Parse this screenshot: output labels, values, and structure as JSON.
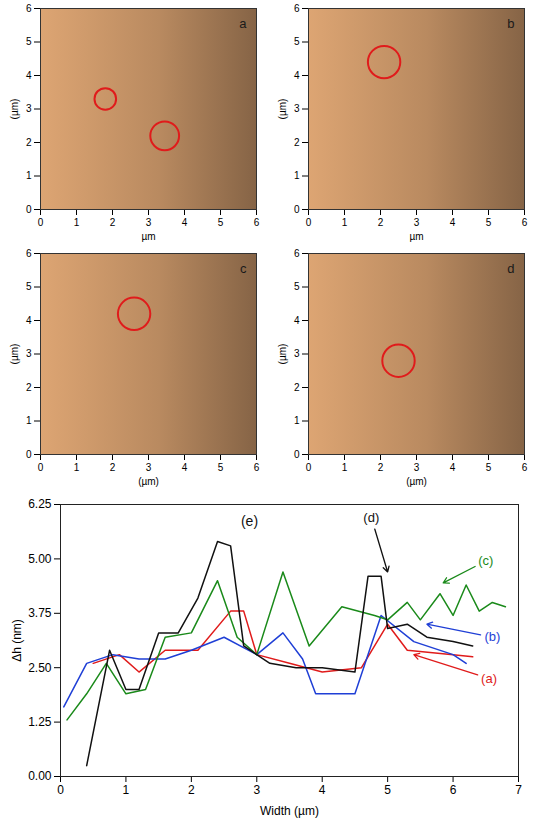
{
  "chart_data": [
    {
      "type": "image",
      "label": "a",
      "color": "#b98a60",
      "xlim": [
        0,
        6
      ],
      "ylim": [
        0,
        6
      ],
      "xticks": [
        0,
        1,
        2,
        3,
        4,
        5,
        6
      ],
      "yticks": [
        0,
        1,
        2,
        3,
        4,
        5,
        6
      ],
      "xlabel": "µm",
      "ylabel": "(µm)",
      "circle_color": "#e01b1b",
      "circles": [
        {
          "x": 1.8,
          "y": 3.3,
          "r": 0.3
        },
        {
          "x": 3.45,
          "y": 2.2,
          "r": 0.4
        }
      ]
    },
    {
      "type": "image",
      "label": "b",
      "color": "#b98a60",
      "xlim": [
        0,
        6
      ],
      "ylim": [
        0,
        6
      ],
      "xticks": [
        0,
        1,
        2,
        3,
        4,
        5,
        6
      ],
      "yticks": [
        0,
        1,
        2,
        3,
        4,
        5,
        6
      ],
      "xlabel": "µm",
      "ylabel": "(µm)",
      "circle_color": "#e01b1b",
      "circles": [
        {
          "x": 2.1,
          "y": 4.4,
          "r": 0.45
        }
      ]
    },
    {
      "type": "image",
      "label": "c",
      "color": "#b98a60",
      "xlim": [
        0,
        6
      ],
      "ylim": [
        0,
        6
      ],
      "xticks": [
        0,
        1,
        2,
        3,
        4,
        5,
        6
      ],
      "yticks": [
        0,
        1,
        2,
        3,
        4,
        5,
        6
      ],
      "xlabel": "(µm)",
      "ylabel": "(µm)",
      "circle_color": "#e01b1b",
      "circles": [
        {
          "x": 2.6,
          "y": 4.2,
          "r": 0.45
        }
      ]
    },
    {
      "type": "image",
      "label": "d",
      "color": "#b98a60",
      "xlim": [
        0,
        6
      ],
      "ylim": [
        0,
        6
      ],
      "xticks": [
        0,
        1,
        2,
        3,
        4,
        5,
        6
      ],
      "yticks": [
        0,
        1,
        2,
        3,
        4,
        5,
        6
      ],
      "xlabel": "(µm)",
      "ylabel": "(µm)",
      "circle_color": "#e01b1b",
      "circles": [
        {
          "x": 2.5,
          "y": 2.8,
          "r": 0.45
        }
      ]
    },
    {
      "type": "line",
      "title": "(e)",
      "xlabel": "Width (µm)",
      "ylabel": "Δh (nm)",
      "xlim": [
        0,
        7
      ],
      "ylim": [
        0,
        6.25
      ],
      "xticks": [
        0,
        1,
        2,
        3,
        4,
        5,
        6,
        7
      ],
      "yticks": [
        {
          "value": 0,
          "label": "0.00"
        },
        1.25,
        {
          "value": 2.5,
          "label": "2.50"
        },
        3.75,
        {
          "value": 5,
          "label": "5.00"
        },
        6.25
      ],
      "series": [
        {
          "name": "(a)",
          "color": "#e01b1b",
          "label_xy": [
            6.55,
            2.25
          ],
          "arrow_to": [
            5.4,
            2.8
          ],
          "x": [
            0.5,
            0.9,
            1.2,
            1.6,
            2.1,
            2.6,
            2.8,
            3.0,
            3.5,
            4.0,
            4.6,
            5.0,
            5.3,
            6.0,
            6.3
          ],
          "values": [
            2.6,
            2.8,
            2.4,
            2.9,
            2.9,
            3.8,
            3.8,
            2.8,
            2.6,
            2.4,
            2.5,
            3.5,
            2.9,
            2.8,
            2.75
          ]
        },
        {
          "name": "(b)",
          "color": "#1f3fd6",
          "label_xy": [
            6.6,
            3.2
          ],
          "arrow_to": [
            5.6,
            3.5
          ],
          "x": [
            0.05,
            0.4,
            0.8,
            1.2,
            1.6,
            2.0,
            2.5,
            3.0,
            3.4,
            3.7,
            3.9,
            4.5,
            4.9,
            5.4,
            6.0,
            6.2
          ],
          "values": [
            1.6,
            2.6,
            2.8,
            2.7,
            2.7,
            2.9,
            3.2,
            2.8,
            3.3,
            2.7,
            1.9,
            1.9,
            3.7,
            3.1,
            2.8,
            2.6
          ]
        },
        {
          "name": "(c)",
          "color": "#1a8a1a",
          "label_xy": [
            6.5,
            4.95
          ],
          "arrow_to": [
            5.85,
            4.45
          ],
          "x": [
            0.1,
            0.4,
            0.7,
            1.0,
            1.3,
            1.6,
            2.0,
            2.4,
            2.7,
            3.0,
            3.4,
            3.8,
            4.3,
            4.8,
            5.0,
            5.3,
            5.5,
            5.8,
            6.0,
            6.2,
            6.4,
            6.6,
            6.8
          ],
          "values": [
            1.3,
            1.9,
            2.6,
            1.9,
            2.0,
            3.2,
            3.3,
            4.5,
            3.2,
            2.8,
            4.7,
            3.0,
            3.9,
            3.7,
            3.6,
            4.0,
            3.6,
            4.2,
            3.7,
            4.4,
            3.8,
            4.0,
            3.9
          ]
        },
        {
          "name": "(d)",
          "color": "#111111",
          "label_xy": [
            4.75,
            5.95
          ],
          "arrow_to": [
            5.0,
            4.7
          ],
          "x": [
            0.4,
            0.75,
            1.0,
            1.2,
            1.5,
            1.8,
            2.1,
            2.4,
            2.6,
            2.8,
            3.2,
            3.6,
            4.0,
            4.5,
            4.7,
            4.9,
            5.0,
            5.3,
            5.6,
            6.0,
            6.3
          ],
          "values": [
            0.25,
            2.9,
            2.0,
            2.0,
            3.3,
            3.3,
            4.1,
            5.4,
            5.3,
            3.0,
            2.6,
            2.5,
            2.5,
            2.4,
            4.6,
            4.6,
            3.4,
            3.5,
            3.2,
            3.1,
            3.0
          ]
        }
      ]
    }
  ]
}
